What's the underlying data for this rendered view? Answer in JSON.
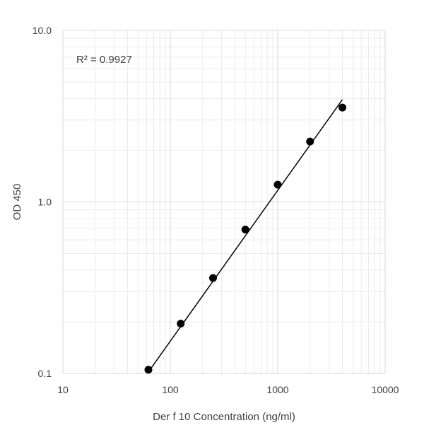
{
  "chart_data": {
    "type": "scatter",
    "title": "",
    "xlabel": "Der f 10 Concentration (ng/ml)",
    "ylabel": "OD 450",
    "x_scale": "log",
    "y_scale": "log",
    "xlim": [
      10,
      10000
    ],
    "ylim": [
      0.1,
      10.0
    ],
    "x_tick_labels": [
      "10",
      "100",
      "1000",
      "10000"
    ],
    "y_tick_labels": [
      "0.1",
      "1.0",
      "10.0"
    ],
    "grid": true,
    "legend": "none",
    "annotation": "R² = 0.9927",
    "series": [
      {
        "x": [
          62.5,
          125,
          250,
          500,
          1000,
          2000,
          4000
        ],
        "y": [
          0.105,
          0.195,
          0.36,
          0.69,
          1.26,
          2.25,
          3.55
        ]
      }
    ],
    "trendline": {
      "x": [
        62.5,
        4000
      ],
      "y": [
        0.102,
        3.95
      ]
    },
    "colors": {
      "marker": "#000000",
      "trendline": "#000000",
      "major_grid": "#d9d9d9",
      "minor_grid": "#ececec",
      "axis_text": "#404040"
    }
  }
}
